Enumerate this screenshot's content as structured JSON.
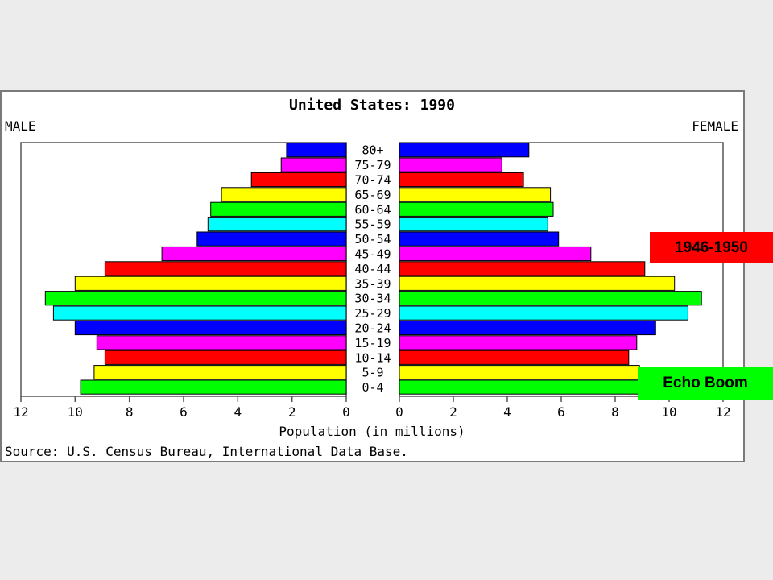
{
  "chart_data": {
    "type": "bar",
    "title": "United States: 1990",
    "left_label": "MALE",
    "right_label": "FEMALE",
    "xlabel": "Population (in millions)",
    "source": "Source: U.S. Census Bureau, International Data Base.",
    "xlim": [
      0,
      12
    ],
    "x_ticks": [
      "12",
      "10",
      "8",
      "6",
      "4",
      "2",
      "0",
      "0",
      "2",
      "4",
      "6",
      "8",
      "10",
      "12"
    ],
    "categories": [
      "80+",
      "75-79",
      "70-74",
      "65-69",
      "60-64",
      "55-59",
      "50-54",
      "45-49",
      "40-44",
      "35-39",
      "30-34",
      "25-29",
      "20-24",
      "15-19",
      "10-14",
      "5-9",
      "0-4"
    ],
    "colors": [
      "#0000ff",
      "#ff00ff",
      "#ff0000",
      "#ffff00",
      "#00ff00",
      "#00ffff",
      "#0000ff",
      "#ff00ff",
      "#ff0000",
      "#ffff00",
      "#00ff00",
      "#00ffff",
      "#0000ff",
      "#ff00ff",
      "#ff0000",
      "#ffff00",
      "#00ff00"
    ],
    "series": [
      {
        "name": "MALE",
        "values": [
          2.2,
          2.4,
          3.5,
          4.6,
          5.0,
          5.1,
          5.5,
          6.8,
          8.9,
          10.0,
          11.1,
          10.8,
          10.0,
          9.2,
          8.9,
          9.3,
          9.8
        ]
      },
      {
        "name": "FEMALE",
        "values": [
          4.8,
          3.8,
          4.6,
          5.6,
          5.7,
          5.5,
          5.9,
          7.1,
          9.1,
          10.2,
          11.2,
          10.7,
          9.5,
          8.8,
          8.5,
          8.9,
          9.3
        ]
      }
    ]
  },
  "annotations": [
    {
      "text": "1946-1950",
      "color": "#ff0000"
    },
    {
      "text": "Echo Boom",
      "color": "#00ff00"
    }
  ]
}
